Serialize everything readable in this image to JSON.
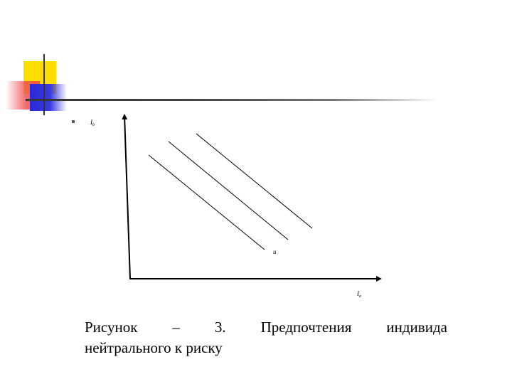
{
  "diagram": {
    "y_axis_label": "I",
    "y_axis_label_sub": "b",
    "x_axis_label": "I",
    "x_axis_label_sub": "a",
    "curve_label": "u",
    "curve_count": 3
  },
  "caption": {
    "line1": [
      "Рисунок",
      "–",
      "3.",
      "Предпочтения",
      "индивида"
    ],
    "line2": "нейтрального к риску"
  }
}
